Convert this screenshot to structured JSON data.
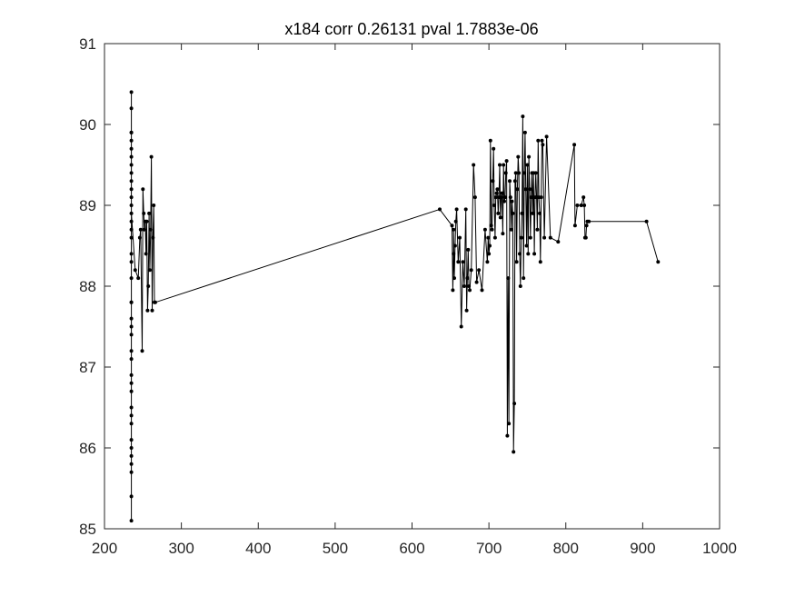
{
  "chart_data": {
    "type": "line",
    "title": "x184 corr 0.26131 pval 1.7883e-06",
    "xlabel": "",
    "ylabel": "",
    "xlim": [
      200,
      1000
    ],
    "ylim": [
      85,
      91
    ],
    "xticks": [
      "200",
      "300",
      "400",
      "500",
      "600",
      "700",
      "800",
      "900",
      "1000"
    ],
    "yticks": [
      "85",
      "86",
      "87",
      "88",
      "89",
      "90",
      "91"
    ],
    "grid": false,
    "marker": "point",
    "line_color": "#000000",
    "series": [
      {
        "x": [
          235,
          235,
          235,
          235,
          235,
          235,
          235,
          235,
          235,
          235,
          235,
          235,
          235,
          235,
          235,
          235,
          235,
          235,
          235,
          235,
          235,
          235,
          235,
          235,
          235,
          235,
          235,
          235,
          235,
          235,
          235,
          235,
          235,
          235,
          235,
          235,
          235,
          235,
          235,
          235,
          240,
          244,
          246,
          247,
          249,
          250,
          251,
          252,
          253,
          254,
          255,
          256,
          257,
          258,
          259,
          260,
          261,
          262,
          263,
          264,
          265,
          266,
          636,
          652,
          653,
          654,
          654,
          655,
          656,
          657,
          658,
          660,
          662,
          664,
          666,
          668,
          670,
          671,
          672,
          673,
          674,
          675,
          677,
          680,
          682,
          684,
          687,
          691,
          695,
          698,
          699,
          700,
          701,
          702,
          703,
          704,
          705,
          706,
          707,
          708,
          709,
          710,
          711,
          712,
          713,
          714,
          715,
          716,
          717,
          718,
          719,
          720,
          721,
          722,
          723,
          724,
          725,
          726,
          727,
          728,
          729,
          730,
          731,
          732,
          733,
          734,
          735,
          736,
          737,
          738,
          739,
          740,
          741,
          742,
          743,
          744,
          745,
          746,
          747,
          748,
          749,
          750,
          751,
          752,
          753,
          754,
          755,
          756,
          757,
          758,
          759,
          760,
          761,
          762,
          763,
          764,
          765,
          766,
          767,
          768,
          769,
          770,
          772,
          775,
          780,
          790,
          811,
          812,
          815,
          820,
          823,
          824,
          825,
          826,
          827,
          828,
          830,
          905,
          920
        ],
        "y": [
          90.4,
          85.1,
          90.2,
          85.4,
          89.9,
          85.7,
          89.6,
          85.9,
          89.3,
          86.1,
          89.0,
          86.5,
          88.8,
          86.9,
          88.6,
          87.2,
          88.4,
          87.4,
          88.1,
          87.6,
          87.8,
          87.8,
          88.3,
          87.5,
          88.7,
          87.1,
          89.1,
          86.8,
          89.4,
          86.4,
          89.7,
          86.0,
          89.8,
          85.8,
          89.9,
          86.3,
          89.5,
          86.7,
          89.2,
          88.9,
          88.2,
          88.1,
          88.6,
          88.7,
          87.2,
          89.2,
          88.9,
          88.7,
          88.8,
          88.4,
          88.8,
          87.7,
          88.0,
          88.9,
          88.2,
          88.7,
          89.6,
          87.7,
          88.6,
          89.0,
          87.8,
          87.8,
          88.95,
          88.75,
          87.95,
          88.4,
          88.7,
          88.1,
          88.5,
          88.8,
          88.95,
          88.3,
          88.6,
          87.5,
          88.3,
          88.0,
          88.95,
          87.7,
          88.1,
          88.45,
          88.0,
          87.95,
          88.2,
          89.5,
          89.1,
          88.05,
          88.2,
          87.95,
          88.7,
          88.3,
          88.6,
          88.4,
          88.5,
          89.8,
          88.75,
          88.7,
          89.3,
          89.7,
          89.0,
          88.6,
          89.1,
          89.15,
          89.2,
          88.9,
          89.1,
          89.5,
          88.85,
          89.1,
          89.15,
          88.65,
          89.5,
          89.05,
          89.1,
          89.4,
          89.55,
          86.15,
          88.1,
          86.3,
          89.3,
          89.1,
          88.7,
          89.05,
          88.9,
          85.95,
          86.55,
          89.3,
          89.4,
          88.3,
          89.2,
          89.6,
          89.4,
          88.4,
          88.0,
          88.6,
          88.9,
          90.1,
          88.1,
          89.4,
          89.9,
          89.2,
          88.5,
          89.5,
          88.4,
          89.6,
          89.2,
          88.6,
          89.1,
          89.4,
          88.9,
          89.4,
          88.4,
          89.1,
          89.4,
          89.1,
          88.7,
          89.8,
          89.1,
          88.9,
          88.3,
          89.1,
          89.8,
          89.75,
          88.6,
          89.85,
          88.6,
          88.55,
          89.75,
          88.75,
          89.0,
          89.0,
          89.1,
          89.0,
          88.6,
          88.6,
          88.75,
          88.8,
          88.8,
          88.8,
          88.3
        ]
      }
    ]
  }
}
